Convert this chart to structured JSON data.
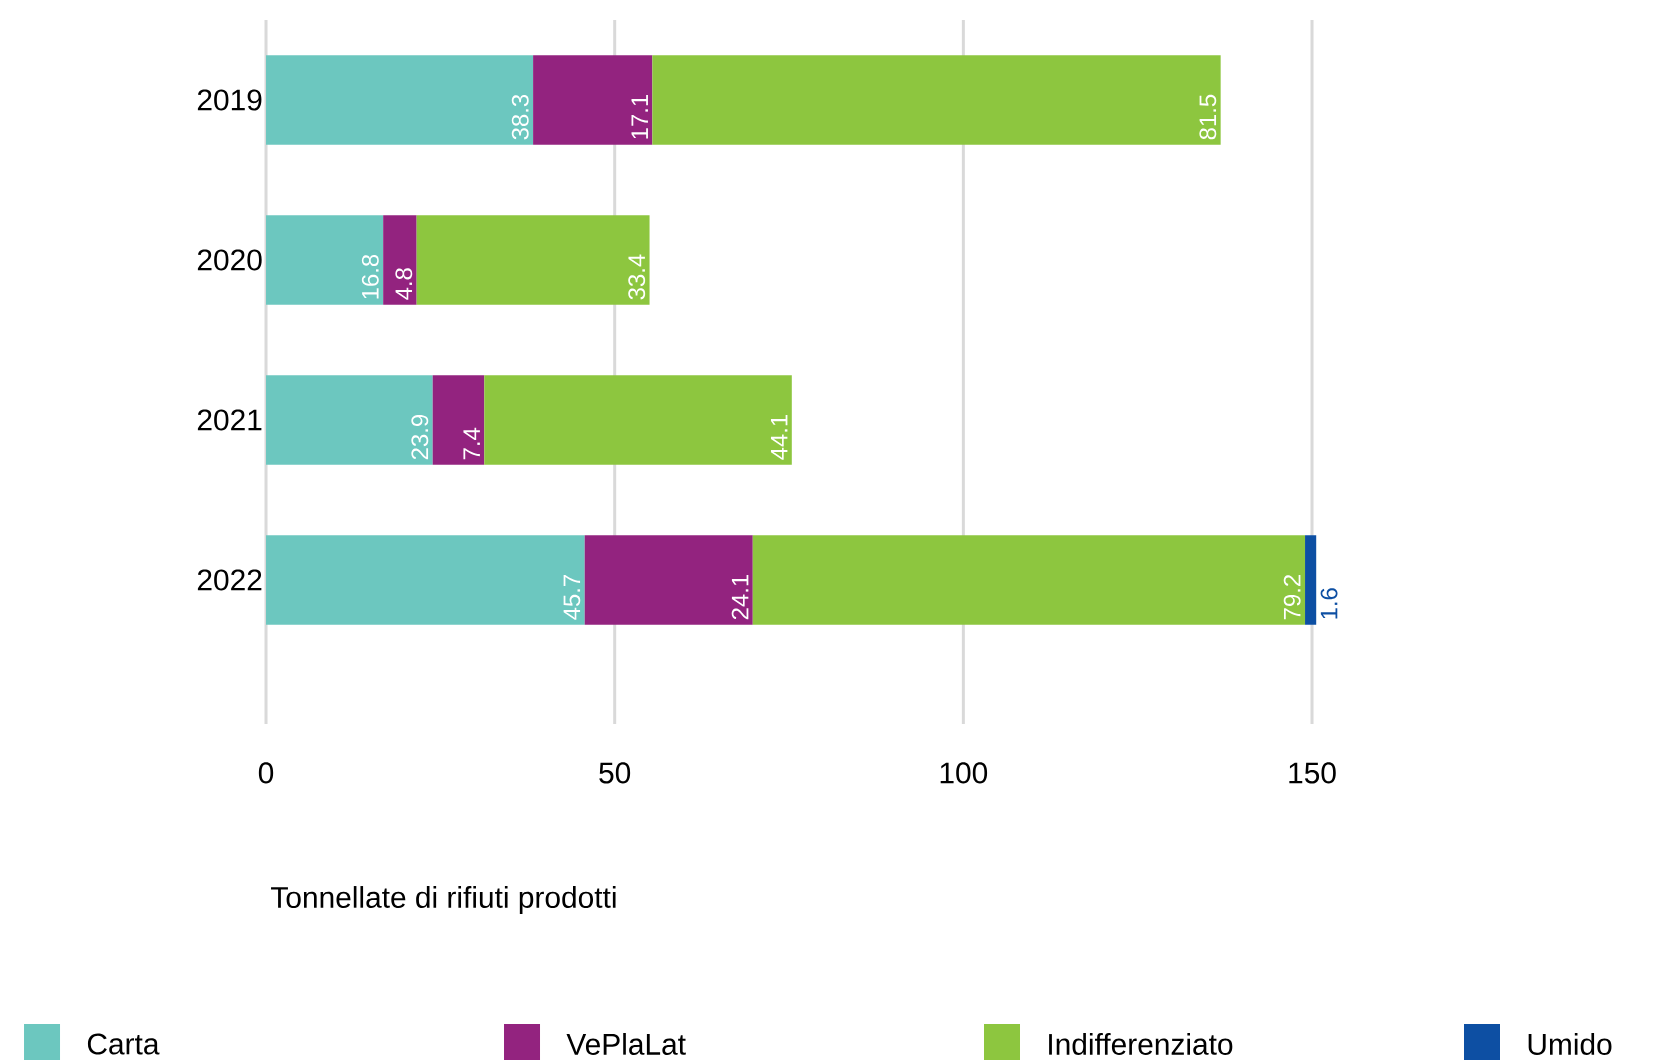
{
  "chart_data": {
    "type": "bar",
    "orientation": "horizontal",
    "stacked": true,
    "xlabel": "Tonnellate di rifiuti prodotti",
    "categories": [
      "2019",
      "2020",
      "2021",
      "2022"
    ],
    "series": [
      {
        "name": "Carta",
        "color": "#6cc7bf",
        "values": [
          38.3,
          16.8,
          23.9,
          45.7
        ]
      },
      {
        "name": "VePlaLat",
        "color": "#93237f",
        "values": [
          17.1,
          4.8,
          7.4,
          24.1
        ]
      },
      {
        "name": "Indifferenziato",
        "color": "#8dc63f",
        "values": [
          81.5,
          33.4,
          44.1,
          79.2
        ]
      },
      {
        "name": "Umido",
        "color": "#0d4fa3",
        "values": [
          null,
          null,
          null,
          1.6
        ]
      }
    ],
    "xlim": [
      0,
      150
    ],
    "xticks": [
      0,
      50,
      100,
      150
    ],
    "grid": "x",
    "legend": "bottom",
    "data_labels": true
  }
}
